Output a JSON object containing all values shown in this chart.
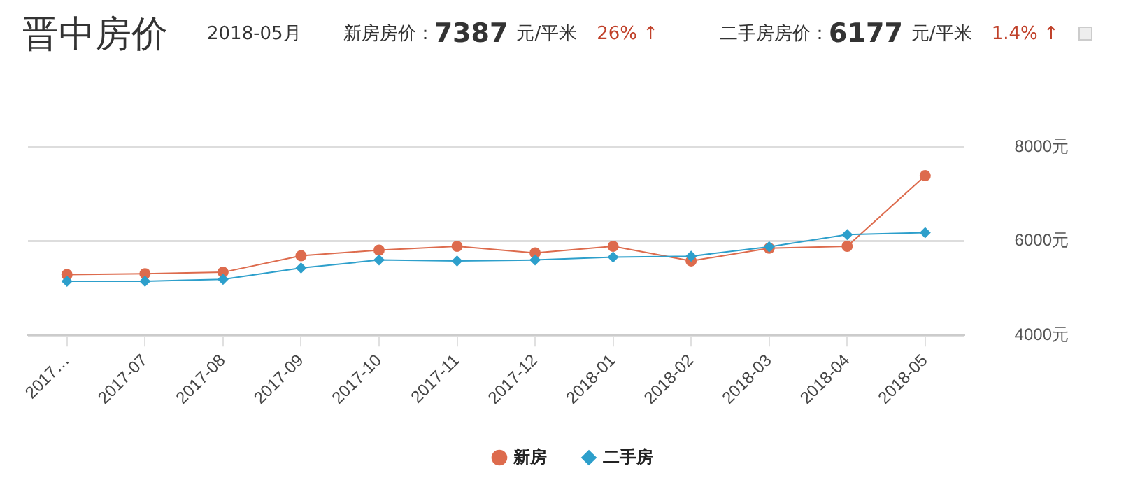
{
  "chart_data": {
    "type": "line",
    "title": "晋中房价",
    "annotations": [
      "2018-05月",
      "新房房价：",
      "7387",
      "元/平米",
      "26% ↑",
      "二手房房价：",
      "6177",
      "元/平米",
      "1.4% ↑"
    ],
    "categories": [
      "2017…",
      "2017-07",
      "2017-08",
      "2017-09",
      "2017-10",
      "2017-11",
      "2017-12",
      "2018-01",
      "2018-02",
      "2018-03",
      "2018-04",
      "2018-05"
    ],
    "series": [
      {
        "name": "新房",
        "color": "#dd6b4d",
        "marker": "circle",
        "values": [
          5290,
          5310,
          5340,
          5690,
          5810,
          5890,
          5750,
          5890,
          5580,
          5850,
          5890,
          7390
        ]
      },
      {
        "name": "二手房",
        "color": "#2d9fcb",
        "marker": "diamond",
        "values": [
          5150,
          5150,
          5190,
          5430,
          5600,
          5580,
          5600,
          5660,
          5680,
          5880,
          6140,
          6180
        ]
      }
    ],
    "ylim": [
      4000,
      8000
    ],
    "yticks": [
      {
        "value": 4000,
        "label": "4000元"
      },
      {
        "value": 6000,
        "label": "6000元"
      },
      {
        "value": 8000,
        "label": "8000元"
      }
    ],
    "grid": "y",
    "legend": "bottom",
    "line_style": "solid"
  }
}
